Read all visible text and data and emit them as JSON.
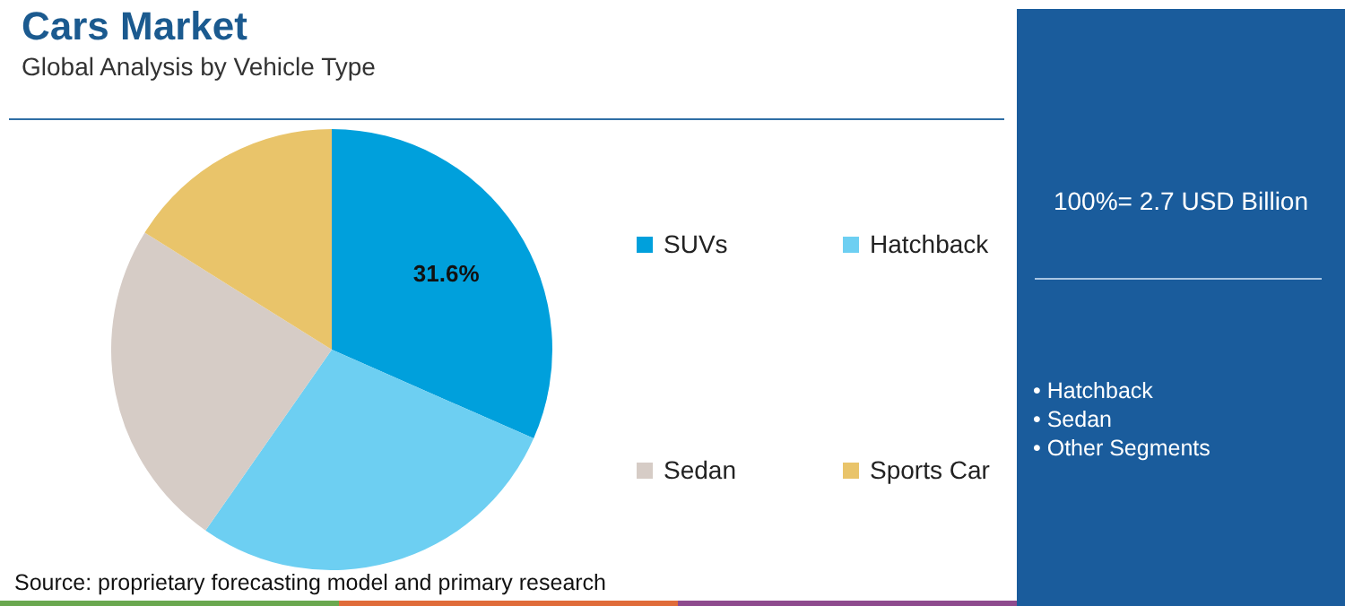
{
  "chart_data": {
    "type": "pie",
    "title": "Cars Market",
    "subtitle": "Global Analysis by Vehicle Type",
    "categories": [
      "SUVs",
      "Hatchback",
      "Sedan",
      "Sports Car"
    ],
    "values": [
      31.6,
      28.1,
      24.2,
      16.1
    ],
    "colors": [
      "#00a0dc",
      "#6dcff2",
      "#d6ccc6",
      "#e9c46a"
    ],
    "value_labels": [
      "31.6%",
      null,
      null,
      null
    ],
    "legend": "right",
    "annotations": [
      "Source: proprietary forecasting model and primary research",
      "100%= 2.7 USD Billion",
      "• Hatchback",
      "• Sedan",
      "• Other Segments"
    ]
  }
}
